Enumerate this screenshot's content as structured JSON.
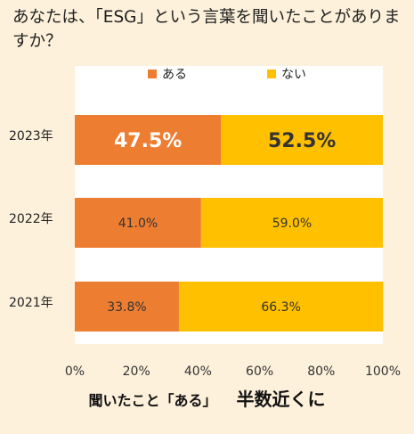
{
  "question": "あなたは、「ESG」という言葉を聞いたことがありますか？",
  "colors": {
    "aru": "#ed7d31",
    "nai": "#ffc000",
    "plot_bg": "#ffffff",
    "page_bg": "#fdf1db"
  },
  "chart_data": {
    "type": "bar",
    "orientation": "horizontal",
    "stacked": true,
    "categories": [
      "2023年",
      "2022年",
      "2021年"
    ],
    "series": [
      {
        "name": "ある",
        "values": [
          47.5,
          41.0,
          33.8
        ],
        "labels": [
          "47.5%",
          "41.0%",
          "33.8%"
        ]
      },
      {
        "name": "ない",
        "values": [
          52.5,
          59.0,
          66.3
        ],
        "labels": [
          "52.5%",
          "59.0%",
          "66.3%"
        ]
      }
    ],
    "xlim": [
      0,
      100
    ],
    "xticks": [
      "0%",
      "20%",
      "40%",
      "60%",
      "80%",
      "100%"
    ],
    "legend": "top",
    "highlight_category": "2023年"
  },
  "footer": {
    "line1": "聞いたこと「ある」",
    "line2": "半数近くに"
  }
}
